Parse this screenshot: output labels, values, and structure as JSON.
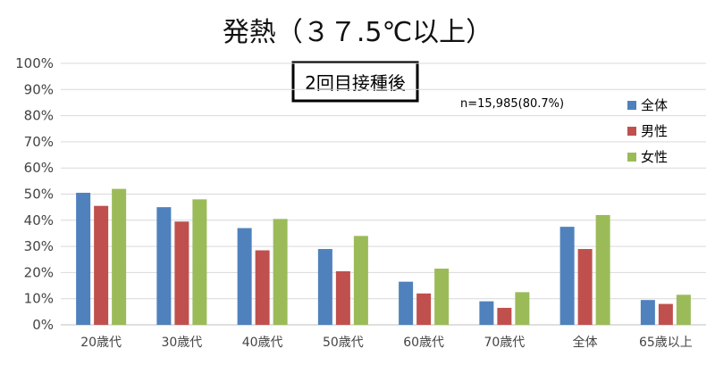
{
  "chart_data": {
    "type": "bar",
    "title": "発熱（３７.5℃以上）",
    "subtitle": "2回目接種後",
    "annotation": "n=15,985(80.7%)",
    "categories": [
      "20歳代",
      "30歳代",
      "40歳代",
      "50歳代",
      "60歳代",
      "70歳代",
      "全体",
      "65歳以上"
    ],
    "series": [
      {
        "name": "全体",
        "color": "#4F81BD",
        "values": [
          50.5,
          45.0,
          37.0,
          29.0,
          16.5,
          9.0,
          37.5,
          9.5
        ]
      },
      {
        "name": "男性",
        "color": "#C0504D",
        "values": [
          45.5,
          39.5,
          28.5,
          20.5,
          12.0,
          6.5,
          29.0,
          8.0
        ]
      },
      {
        "name": "女性",
        "color": "#9BBB59",
        "values": [
          52.0,
          48.0,
          40.5,
          34.0,
          21.5,
          12.5,
          42.0,
          11.5
        ]
      }
    ],
    "ylim": [
      0,
      100
    ],
    "yticks": [
      "0%",
      "10%",
      "20%",
      "30%",
      "40%",
      "50%",
      "60%",
      "70%",
      "80%",
      "90%",
      "100%"
    ],
    "grid": true,
    "legend_position": "right"
  }
}
